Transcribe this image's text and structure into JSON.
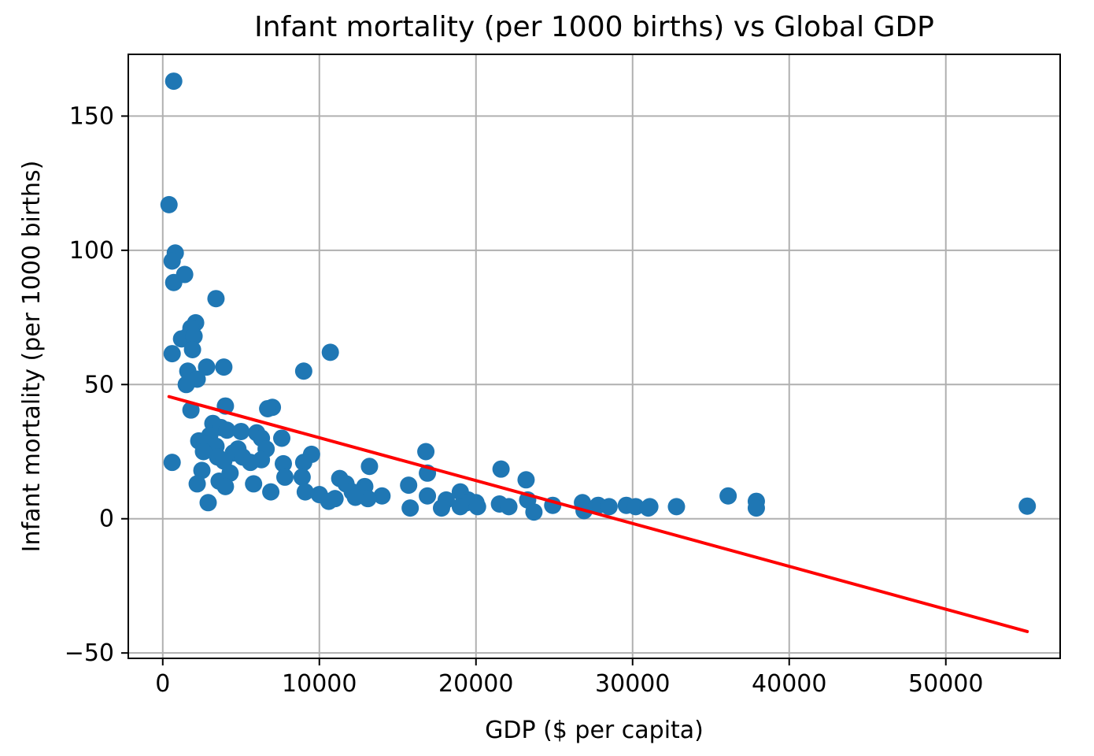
{
  "chart_data": {
    "type": "scatter",
    "title": "Infant mortality (per 1000 births) vs Global GDP",
    "xlabel": "GDP ($ per capita)",
    "ylabel": "Infant mortality (per 1000 births)",
    "xlim": [
      -2200,
      57300
    ],
    "ylim": [
      -52,
      173
    ],
    "xticks": [
      0,
      10000,
      20000,
      30000,
      40000,
      50000
    ],
    "yticks": [
      -50,
      0,
      50,
      100,
      150
    ],
    "grid": true,
    "colors": {
      "points": "#1f77b4",
      "trend": "#ff0000",
      "grid": "#b0b0b0",
      "frame": "#000000"
    },
    "series": [
      {
        "kind": "points",
        "points": [
          [
            700,
            163
          ],
          [
            400,
            117
          ],
          [
            800,
            99
          ],
          [
            600,
            96
          ],
          [
            1400,
            91
          ],
          [
            700,
            88
          ],
          [
            3400,
            82
          ],
          [
            2100,
            73
          ],
          [
            1800,
            71
          ],
          [
            1600,
            68
          ],
          [
            1200,
            67
          ],
          [
            2000,
            68
          ],
          [
            1900,
            63
          ],
          [
            600,
            61.5
          ],
          [
            10700,
            62
          ],
          [
            2800,
            56.5
          ],
          [
            3900,
            56.5
          ],
          [
            1600,
            55
          ],
          [
            9000,
            55
          ],
          [
            2200,
            52
          ],
          [
            1500,
            50
          ],
          [
            4000,
            42
          ],
          [
            7000,
            41.5
          ],
          [
            6700,
            41
          ],
          [
            1800,
            40.5
          ],
          [
            3200,
            35.5
          ],
          [
            3700,
            34
          ],
          [
            4100,
            33
          ],
          [
            5000,
            32.5
          ],
          [
            6000,
            32
          ],
          [
            3000,
            31
          ],
          [
            6300,
            30
          ],
          [
            7600,
            30
          ],
          [
            2300,
            29
          ],
          [
            2700,
            28
          ],
          [
            3400,
            27
          ],
          [
            4800,
            26
          ],
          [
            6600,
            26
          ],
          [
            2600,
            25
          ],
          [
            16800,
            25
          ],
          [
            4500,
            24.5
          ],
          [
            9500,
            24
          ],
          [
            3500,
            23
          ],
          [
            5100,
            23
          ],
          [
            6300,
            22
          ],
          [
            3900,
            21.5
          ],
          [
            600,
            21
          ],
          [
            9000,
            21
          ],
          [
            5600,
            21
          ],
          [
            7700,
            20.5
          ],
          [
            13200,
            19.5
          ],
          [
            21600,
            18.5
          ],
          [
            2500,
            18
          ],
          [
            4300,
            17
          ],
          [
            16900,
            17
          ],
          [
            7800,
            15.5
          ],
          [
            8900,
            15.5
          ],
          [
            11300,
            15
          ],
          [
            23200,
            14.5
          ],
          [
            3600,
            14
          ],
          [
            11700,
            13
          ],
          [
            2200,
            13
          ],
          [
            5800,
            13
          ],
          [
            4000,
            12
          ],
          [
            15700,
            12.5
          ],
          [
            12900,
            12
          ],
          [
            6900,
            10
          ],
          [
            9100,
            10
          ],
          [
            12100,
            10
          ],
          [
            19000,
            10
          ],
          [
            10000,
            9
          ],
          [
            14000,
            8.5
          ],
          [
            16900,
            8.5
          ],
          [
            11000,
            7.5
          ],
          [
            13100,
            7.5
          ],
          [
            2900,
            6
          ],
          [
            10600,
            6.5
          ],
          [
            12300,
            8
          ],
          [
            18100,
            7
          ],
          [
            19500,
            7
          ],
          [
            20000,
            6
          ],
          [
            23300,
            7
          ],
          [
            19400,
            6
          ],
          [
            21500,
            5.5
          ],
          [
            24900,
            5
          ],
          [
            26800,
            6
          ],
          [
            27800,
            5
          ],
          [
            28500,
            4.5
          ],
          [
            29600,
            5
          ],
          [
            30200,
            4.5
          ],
          [
            22100,
            4.5
          ],
          [
            15800,
            4
          ],
          [
            17800,
            4
          ],
          [
            19000,
            4.5
          ],
          [
            20100,
            4.5
          ],
          [
            26900,
            3
          ],
          [
            23700,
            2.5
          ],
          [
            31100,
            4.5
          ],
          [
            32800,
            4.5
          ],
          [
            36100,
            8.5
          ],
          [
            37900,
            6.5
          ],
          [
            37900,
            4
          ],
          [
            31000,
            4
          ],
          [
            55200,
            4.7
          ]
        ]
      },
      {
        "kind": "trend_line",
        "points": [
          [
            400,
            45.5
          ],
          [
            55200,
            -42
          ]
        ]
      }
    ]
  }
}
